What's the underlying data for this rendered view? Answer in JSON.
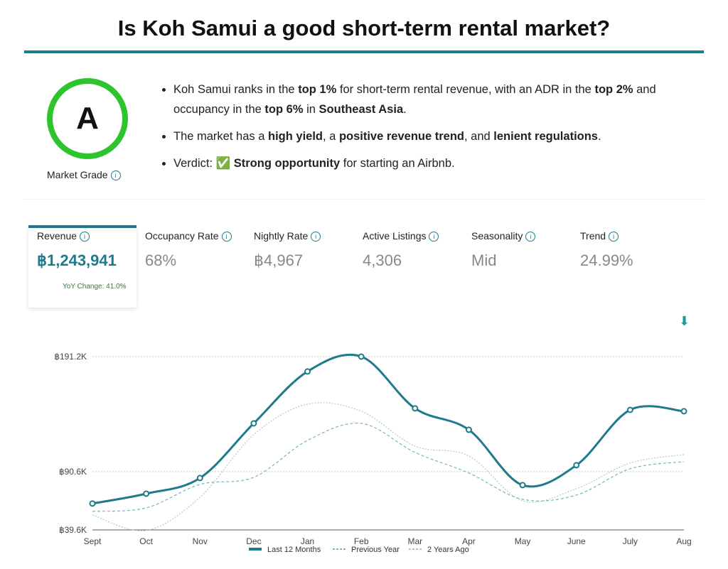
{
  "title": "Is Koh Samui a good short-term rental market?",
  "grade": {
    "letter": "A",
    "label": "Market Grade",
    "color": "#2dc42d"
  },
  "bullets": [
    {
      "parts": [
        [
          "Koh Samui ranks in the ",
          0
        ],
        [
          "top 1%",
          1
        ],
        [
          " for short-term rental revenue, with an ADR in the ",
          0
        ],
        [
          "top 2%",
          1
        ],
        [
          " and occupancy in the ",
          0
        ],
        [
          "top 6%",
          1
        ],
        [
          " in ",
          0
        ],
        [
          "Southeast Asia",
          1
        ],
        [
          ".",
          0
        ]
      ]
    },
    {
      "parts": [
        [
          "The market has a ",
          0
        ],
        [
          "high yield",
          1
        ],
        [
          ", a ",
          0
        ],
        [
          "positive revenue trend",
          1
        ],
        [
          ", and ",
          0
        ],
        [
          "lenient regulations",
          1
        ],
        [
          ".",
          0
        ]
      ]
    },
    {
      "parts": [
        [
          "Verdict: ",
          0
        ],
        [
          "✅ ",
          0
        ],
        [
          "Strong opportunity",
          1
        ],
        [
          " for starting an Airbnb.",
          0
        ]
      ]
    }
  ],
  "metrics": [
    {
      "label": "Revenue",
      "value": "฿1,243,941",
      "sub": "YoY Change: 41.0%"
    },
    {
      "label": "Occupancy Rate",
      "value": "68%"
    },
    {
      "label": "Nightly Rate",
      "value": "฿4,967"
    },
    {
      "label": "Active Listings",
      "value": "4,306"
    },
    {
      "label": "Seasonality",
      "value": "Mid"
    },
    {
      "label": "Trend",
      "value": "24.99%"
    }
  ],
  "chart_data": {
    "type": "line",
    "categories": [
      "Sept",
      "Oct",
      "Nov",
      "Dec",
      "Jan",
      "Feb",
      "Mar",
      "Apr",
      "May",
      "June",
      "July",
      "Aug"
    ],
    "y_ticks": [
      {
        "v": 39.6,
        "label": "฿39.6K"
      },
      {
        "v": 90.6,
        "label": "฿90.6K"
      },
      {
        "v": 191.2,
        "label": "฿191.2K"
      }
    ],
    "ylim": [
      39.6,
      191.2
    ],
    "series": [
      {
        "name": "Last 12 Months",
        "color": "#1f7a8c",
        "values": [
          62.7,
          71.3,
          85.0,
          132.8,
          178.2,
          191.2,
          145.9,
          127.2,
          78.8,
          96.2,
          144.6,
          143.4
        ]
      },
      {
        "name": "Previous Year",
        "color": "#6fb7c2",
        "values": [
          55.8,
          58.9,
          79.4,
          85.6,
          117.9,
          132.8,
          107.4,
          89.4,
          66.4,
          70.1,
          93.1,
          99.3
        ]
      },
      {
        "name": "2 Years Ago",
        "color": "#b5c6ca",
        "values": [
          52.7,
          39.1,
          68.2,
          122.9,
          149.6,
          143.4,
          112.9,
          104.3,
          65.1,
          75.7,
          98.1,
          105.5
        ]
      }
    ]
  }
}
